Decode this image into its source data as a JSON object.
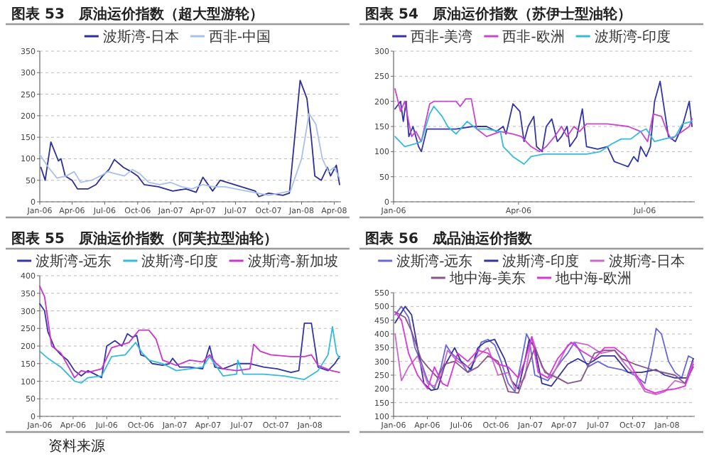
{
  "chart_data": [
    {
      "type": "line",
      "title": "图表 53　原油运价指数（超大型游轮）",
      "legend": "top",
      "grid": "y",
      "xlim": [
        "2006-01-01",
        "2008-04-20"
      ],
      "ylim": [
        0,
        350
      ],
      "yticks": [
        0,
        50,
        100,
        150,
        200,
        250,
        300,
        350
      ],
      "xticks": [
        {
          "value": "2006-01",
          "label": "Jan-06"
        },
        {
          "value": "2006-04",
          "label": "Apr-06"
        },
        {
          "value": "2006-07",
          "label": "Jul-06"
        },
        {
          "value": "2006-10",
          "label": "Oct-06"
        },
        {
          "value": "2007-01",
          "label": "Jan-07"
        },
        {
          "value": "2007-04",
          "label": "Apr-07"
        },
        {
          "value": "2007-07",
          "label": "Jul-07"
        },
        {
          "value": "2007-10",
          "label": "Oct-07"
        },
        {
          "value": "2008-01",
          "label": "Jan-08"
        },
        {
          "value": "2008-04",
          "label": "Apr-08"
        }
      ],
      "series": [
        {
          "name": "波斯湾-日本",
          "color": "#2e2e9a",
          "x": [
            "2006-01-04",
            "2006-01-16",
            "2006-02-01",
            "2006-02-22",
            "2006-03-01",
            "2006-03-13",
            "2006-04-01",
            "2006-04-16",
            "2006-05-16",
            "2006-06-07",
            "2006-06-25",
            "2006-07-13",
            "2006-07-28",
            "2006-08-22",
            "2006-09-13",
            "2006-10-01",
            "2006-10-19",
            "2006-11-28",
            "2007-01-07",
            "2007-02-13",
            "2007-03-13",
            "2007-04-01",
            "2007-04-28",
            "2007-05-19",
            "2007-06-28",
            "2007-08-25",
            "2007-09-04",
            "2007-10-01",
            "2007-11-10",
            "2007-11-28",
            "2007-12-13",
            "2007-12-28",
            "2008-01-16",
            "2008-01-28",
            "2008-02-07",
            "2008-02-25",
            "2008-03-13",
            "2008-03-22",
            "2008-04-07",
            "2008-04-16"
          ],
          "values": [
            80,
            50,
            139,
            95,
            100,
            60,
            50,
            30,
            30,
            40,
            60,
            75,
            98,
            80,
            70,
            60,
            40,
            35,
            25,
            30,
            22,
            57,
            25,
            50,
            40,
            25,
            12,
            20,
            15,
            20,
            150,
            282,
            240,
            150,
            60,
            50,
            80,
            60,
            85,
            40
          ]
        },
        {
          "name": "西非-中国",
          "color": "#a8c0ec",
          "x": [
            "2006-01-01",
            "2006-01-25",
            "2006-02-18",
            "2006-03-16",
            "2006-04-07",
            "2006-04-25",
            "2006-05-25",
            "2006-06-19",
            "2006-07-10",
            "2006-08-01",
            "2006-08-25",
            "2006-09-16",
            "2006-10-07",
            "2006-11-01",
            "2006-12-01",
            "2007-01-01",
            "2007-02-01",
            "2007-03-01",
            "2007-04-01",
            "2007-05-01",
            "2007-06-01",
            "2007-07-01",
            "2007-08-01",
            "2007-09-01",
            "2007-10-01",
            "2007-11-01",
            "2007-12-01",
            "2008-01-01",
            "2008-01-22",
            "2008-02-10",
            "2008-02-28",
            "2008-03-16",
            "2008-04-01",
            "2008-04-16"
          ],
          "values": [
            110,
            80,
            55,
            60,
            70,
            45,
            50,
            60,
            70,
            65,
            60,
            75,
            65,
            45,
            40,
            45,
            35,
            30,
            40,
            35,
            35,
            30,
            25,
            20,
            15,
            20,
            25,
            100,
            205,
            180,
            100,
            70,
            80,
            55
          ]
        }
      ]
    },
    {
      "type": "line",
      "title": "图表 54　原油运价指数（苏伊士型油轮）",
      "legend": "top",
      "grid": "y",
      "xlim": [
        "2006-01-01",
        "2006-08-06"
      ],
      "ylim": [
        0,
        300
      ],
      "yticks": [
        0,
        50,
        100,
        150,
        200,
        250,
        300
      ],
      "xticks": [
        {
          "value": "2006-01",
          "label": "Jan-06"
        },
        {
          "value": "2006-04",
          "label": "Apr-06"
        },
        {
          "value": "2006-07",
          "label": "Jul-06"
        }
      ],
      "series": [
        {
          "name": "西非-美湾",
          "color": "#3333aa",
          "x": [
            "2006-01-02",
            "2006-01-06",
            "2006-01-08",
            "2006-01-10",
            "2006-01-12",
            "2006-01-15",
            "2006-01-19",
            "2006-01-21",
            "2006-01-25",
            "2006-01-30",
            "2006-02-15",
            "2006-02-27",
            "2006-03-09",
            "2006-03-16",
            "2006-03-21",
            "2006-03-23",
            "2006-03-28",
            "2006-04-02",
            "2006-04-05",
            "2006-04-08",
            "2006-04-12",
            "2006-04-14",
            "2006-04-18",
            "2006-04-21",
            "2006-04-25",
            "2006-04-29",
            "2006-05-02",
            "2006-05-06",
            "2006-05-08",
            "2006-05-13",
            "2006-05-17",
            "2006-05-20",
            "2006-05-28",
            "2006-06-04",
            "2006-06-09",
            "2006-06-14",
            "2006-06-19",
            "2006-06-23",
            "2006-06-26",
            "2006-06-28",
            "2006-07-02",
            "2006-07-05",
            "2006-07-08",
            "2006-07-12",
            "2006-07-15",
            "2006-07-18",
            "2006-07-23",
            "2006-07-28",
            "2006-08-02",
            "2006-08-04"
          ],
          "values": [
            185,
            200,
            160,
            200,
            130,
            150,
            110,
            100,
            145,
            145,
            145,
            150,
            150,
            140,
            150,
            135,
            195,
            180,
            120,
            150,
            170,
            110,
            100,
            150,
            165,
            120,
            130,
            150,
            110,
            130,
            185,
            110,
            105,
            110,
            80,
            75,
            70,
            90,
            80,
            110,
            90,
            110,
            200,
            240,
            185,
            130,
            120,
            150,
            200,
            150
          ]
        },
        {
          "name": "西非-欧洲",
          "color": "#cc44cc",
          "x": [
            "2006-01-02",
            "2006-01-06",
            "2006-01-09",
            "2006-01-14",
            "2006-01-17",
            "2006-01-21",
            "2006-01-27",
            "2006-01-30",
            "2006-02-15",
            "2006-02-18",
            "2006-02-22",
            "2006-02-26",
            "2006-03-02",
            "2006-03-09",
            "2006-03-19",
            "2006-03-28",
            "2006-04-03",
            "2006-04-10",
            "2006-04-16",
            "2006-04-21",
            "2006-04-27",
            "2006-05-02",
            "2006-05-06",
            "2006-05-11",
            "2006-05-15",
            "2006-05-20",
            "2006-06-04",
            "2006-06-19",
            "2006-06-28",
            "2006-07-03",
            "2006-07-07",
            "2006-07-13",
            "2006-07-17",
            "2006-07-20",
            "2006-07-28",
            "2006-08-02",
            "2006-08-04"
          ],
          "values": [
            225,
            180,
            200,
            130,
            140,
            120,
            195,
            200,
            200,
            190,
            205,
            205,
            145,
            130,
            140,
            135,
            130,
            110,
            100,
            110,
            130,
            150,
            130,
            150,
            140,
            155,
            155,
            150,
            140,
            120,
            175,
            170,
            140,
            125,
            140,
            150,
            165
          ]
        },
        {
          "name": "波斯湾-印度",
          "color": "#33bbdd",
          "x": [
            "2006-01-02",
            "2006-01-09",
            "2006-01-16",
            "2006-01-21",
            "2006-01-27",
            "2006-01-30",
            "2006-02-05",
            "2006-02-09",
            "2006-02-15",
            "2006-02-23",
            "2006-03-02",
            "2006-03-09",
            "2006-03-19",
            "2006-03-21",
            "2006-03-28",
            "2006-04-05",
            "2006-04-10",
            "2006-04-19",
            "2006-05-06",
            "2006-05-20",
            "2006-05-30",
            "2006-06-07",
            "2006-06-14",
            "2006-06-21",
            "2006-06-28",
            "2006-07-02",
            "2006-07-08",
            "2006-07-15",
            "2006-07-23",
            "2006-07-28",
            "2006-08-04"
          ],
          "values": [
            130,
            110,
            115,
            120,
            175,
            190,
            170,
            150,
            135,
            160,
            145,
            145,
            140,
            110,
            90,
            75,
            90,
            95,
            95,
            95,
            100,
            115,
            125,
            125,
            140,
            145,
            120,
            125,
            130,
            155,
            160
          ]
        }
      ]
    },
    {
      "type": "line",
      "title": "图表 55　原油运价指数（阿芙拉型油轮）",
      "legend": "top",
      "grid": "y",
      "xlim": [
        "2006-01-01",
        "2008-03-25"
      ],
      "ylim": [
        0,
        400
      ],
      "yticks": [
        0,
        50,
        100,
        150,
        200,
        250,
        300,
        350,
        400
      ],
      "xticks": [
        {
          "value": "2006-01",
          "label": "Jan-06"
        },
        {
          "value": "2006-04",
          "label": "Apr-06"
        },
        {
          "value": "2006-07",
          "label": "Jul-06"
        },
        {
          "value": "2006-10",
          "label": "Oct-06"
        },
        {
          "value": "2007-01",
          "label": "Jan-07"
        },
        {
          "value": "2007-04",
          "label": "Apr-07"
        },
        {
          "value": "2007-07",
          "label": "Jul-07"
        },
        {
          "value": "2007-10",
          "label": "Oct-07"
        },
        {
          "value": "2008-01",
          "label": "Jan-08"
        }
      ],
      "annotations": [
        "资料来源"
      ],
      "series": [
        {
          "name": "波斯湾-远东",
          "color": "#3333aa",
          "x": [
            "2006-01-01",
            "2006-01-14",
            "2006-01-23",
            "2006-02-10",
            "2006-02-27",
            "2006-03-17",
            "2006-04-05",
            "2006-04-23",
            "2006-05-11",
            "2006-05-30",
            "2006-06-17",
            "2006-07-01",
            "2006-07-23",
            "2006-08-11",
            "2006-08-26",
            "2006-09-08",
            "2006-09-20",
            "2006-10-01",
            "2006-10-14",
            "2006-11-01",
            "2006-11-29",
            "2006-12-17",
            "2006-12-26",
            "2007-01-14",
            "2007-02-10",
            "2007-03-17",
            "2007-04-05",
            "2007-04-19",
            "2007-05-11",
            "2007-06-17",
            "2007-07-23",
            "2007-08-29",
            "2007-10-05",
            "2007-11-11",
            "2007-12-02",
            "2007-12-17",
            "2008-01-05",
            "2008-01-23",
            "2008-02-19",
            "2008-03-08",
            "2008-03-21"
          ],
          "values": [
            320,
            300,
            240,
            195,
            175,
            160,
            130,
            115,
            130,
            120,
            110,
            200,
            215,
            200,
            235,
            225,
            230,
            175,
            170,
            150,
            145,
            150,
            165,
            140,
            140,
            135,
            200,
            140,
            135,
            150,
            150,
            140,
            135,
            125,
            130,
            265,
            265,
            140,
            130,
            150,
            170
          ]
        },
        {
          "name": "波斯湾-印度",
          "color": "#33bbdd",
          "x": [
            "2006-01-01",
            "2006-01-23",
            "2006-02-27",
            "2006-04-05",
            "2006-04-23",
            "2006-05-11",
            "2006-06-17",
            "2006-07-14",
            "2006-08-20",
            "2006-09-17",
            "2006-10-05",
            "2006-10-23",
            "2006-11-29",
            "2007-01-05",
            "2007-02-10",
            "2007-03-17",
            "2007-04-05",
            "2007-05-11",
            "2007-06-17",
            "2007-06-20",
            "2007-07-05",
            "2007-08-29",
            "2007-10-23",
            "2007-12-17",
            "2008-01-23",
            "2008-02-19",
            "2008-03-02",
            "2008-03-13",
            "2008-03-21"
          ],
          "values": [
            185,
            165,
            140,
            100,
            95,
            110,
            115,
            170,
            175,
            210,
            180,
            160,
            150,
            130,
            135,
            140,
            170,
            115,
            120,
            160,
            120,
            120,
            115,
            105,
            130,
            175,
            255,
            180,
            165
          ]
        },
        {
          "name": "波斯湾-新加坡",
          "color": "#cc33cc",
          "x": [
            "2006-01-01",
            "2006-01-14",
            "2006-02-02",
            "2006-02-27",
            "2006-04-05",
            "2006-04-23",
            "2006-05-11",
            "2006-06-17",
            "2006-07-14",
            "2006-08-30",
            "2006-09-26",
            "2006-10-23",
            "2006-11-11",
            "2006-11-29",
            "2007-01-05",
            "2007-02-10",
            "2007-03-17",
            "2007-04-05",
            "2007-04-23",
            "2007-05-11",
            "2007-06-17",
            "2007-07-23",
            "2007-08-02",
            "2007-08-20",
            "2007-09-17",
            "2007-11-11",
            "2007-12-17",
            "2008-01-05",
            "2008-01-23",
            "2008-02-28",
            "2008-03-21"
          ],
          "values": [
            370,
            340,
            200,
            180,
            110,
            130,
            125,
            135,
            195,
            210,
            245,
            245,
            220,
            160,
            145,
            160,
            155,
            175,
            150,
            135,
            130,
            135,
            205,
            185,
            175,
            170,
            170,
            175,
            145,
            130,
            125
          ]
        }
      ]
    },
    {
      "type": "line",
      "title": "图表 56　成品油运价指数",
      "legend": "top",
      "grid": "y",
      "xlim": [
        "2006-01-01",
        "2008-03-15"
      ],
      "ylim": [
        100,
        550
      ],
      "yticks": [
        100,
        150,
        200,
        250,
        300,
        350,
        400,
        450,
        500,
        550
      ],
      "xticks": [
        {
          "value": "2006-01",
          "label": "Jan-06"
        },
        {
          "value": "2006-04",
          "label": "Apr-06"
        },
        {
          "value": "2006-07",
          "label": "Jul-06"
        },
        {
          "value": "2006-10",
          "label": "Oct-06"
        },
        {
          "value": "2007-01",
          "label": "Jan-07"
        },
        {
          "value": "2007-04",
          "label": "Apr-07"
        },
        {
          "value": "2007-07",
          "label": "Jul-07"
        },
        {
          "value": "2007-10",
          "label": "Oct-07"
        },
        {
          "value": "2008-01",
          "label": "Jan-08"
        }
      ],
      "series": [
        {
          "name": "波斯湾-远东",
          "color": "#6666dd",
          "x": [
            "2006-01-05",
            "2006-01-22",
            "2006-02-10",
            "2006-02-27",
            "2006-03-15",
            "2006-04-02",
            "2006-04-20",
            "2006-05-08",
            "2006-05-21",
            "2006-06-04",
            "2006-06-30",
            "2006-07-18",
            "2006-08-05",
            "2006-08-23",
            "2006-09-10",
            "2006-09-28",
            "2006-10-15",
            "2006-11-03",
            "2006-11-21",
            "2006-12-08",
            "2006-12-22",
            "2006-12-29",
            "2007-01-13",
            "2007-02-17",
            "2007-03-24",
            "2007-04-11",
            "2007-04-29",
            "2007-05-16",
            "2007-06-04",
            "2007-06-30",
            "2007-07-27",
            "2007-09-02",
            "2007-10-07",
            "2007-11-03",
            "2007-11-21",
            "2007-12-03",
            "2007-12-17",
            "2008-01-05",
            "2008-01-22",
            "2008-02-09",
            "2008-02-27",
            "2008-03-11"
          ],
          "values": [
            470,
            500,
            460,
            350,
            300,
            230,
            200,
            280,
            360,
            330,
            300,
            260,
            300,
            370,
            380,
            360,
            300,
            220,
            190,
            300,
            400,
            380,
            250,
            230,
            300,
            330,
            370,
            330,
            280,
            300,
            280,
            270,
            250,
            220,
            330,
            420,
            400,
            300,
            260,
            240,
            320,
            310
          ]
        },
        {
          "name": "波斯湾-印度",
          "color": "#333399",
          "x": [
            "2006-01-05",
            "2006-02-01",
            "2006-02-18",
            "2006-03-06",
            "2006-03-23",
            "2006-04-11",
            "2006-04-29",
            "2006-05-16",
            "2006-06-13",
            "2006-06-30",
            "2006-07-27",
            "2006-08-14",
            "2006-09-02",
            "2006-09-28",
            "2006-10-24",
            "2006-11-12",
            "2006-11-30",
            "2006-12-17",
            "2006-12-29",
            "2007-01-13",
            "2007-02-01",
            "2007-02-26",
            "2007-04-11",
            "2007-05-08",
            "2007-06-04",
            "2007-07-09",
            "2007-08-14",
            "2007-09-19",
            "2007-10-24",
            "2007-12-03",
            "2007-12-26",
            "2008-01-22",
            "2008-02-23",
            "2008-03-11"
          ],
          "values": [
            440,
            500,
            470,
            350,
            220,
            195,
            200,
            280,
            350,
            300,
            270,
            350,
            370,
            380,
            310,
            230,
            200,
            300,
            380,
            350,
            220,
            210,
            290,
            310,
            290,
            320,
            320,
            260,
            260,
            270,
            250,
            240,
            240,
            310
          ]
        },
        {
          "name": "波斯湾-日本",
          "color": "#cc66cc",
          "x": [
            "2006-01-05",
            "2006-01-22",
            "2006-02-10",
            "2006-03-06",
            "2006-04-02",
            "2006-04-20",
            "2006-05-08",
            "2006-05-25",
            "2006-06-21",
            "2006-07-18",
            "2006-08-14",
            "2006-09-10",
            "2006-10-07",
            "2006-11-03",
            "2006-11-21",
            "2006-12-17",
            "2007-01-05",
            "2007-02-01",
            "2007-02-26",
            "2007-04-11",
            "2007-04-29",
            "2007-06-04",
            "2007-07-09",
            "2007-08-14",
            "2007-09-11",
            "2007-10-07",
            "2007-11-03",
            "2007-12-03",
            "2007-12-26",
            "2008-01-22",
            "2008-02-18",
            "2008-03-11"
          ],
          "values": [
            400,
            230,
            280,
            320,
            220,
            210,
            250,
            340,
            300,
            280,
            320,
            350,
            250,
            260,
            200,
            240,
            390,
            280,
            240,
            360,
            370,
            360,
            330,
            340,
            290,
            250,
            190,
            180,
            190,
            230,
            220,
            300
          ]
        },
        {
          "name": "地中海-美东",
          "color": "#885588",
          "x": [
            "2006-01-05",
            "2006-02-01",
            "2006-02-18",
            "2006-03-15",
            "2006-04-02",
            "2006-04-29",
            "2006-05-16",
            "2006-06-13",
            "2006-07-18",
            "2006-08-14",
            "2006-09-10",
            "2006-10-07",
            "2006-11-03",
            "2006-11-30",
            "2006-12-17",
            "2007-01-13",
            "2007-02-09",
            "2007-03-15",
            "2007-04-11",
            "2007-05-16",
            "2007-06-21",
            "2007-07-18",
            "2007-08-14",
            "2007-09-02",
            "2007-10-07",
            "2007-11-21",
            "2008-01-22",
            "2008-02-18",
            "2008-03-11"
          ],
          "values": [
            480,
            460,
            410,
            310,
            280,
            240,
            290,
            300,
            260,
            280,
            320,
            300,
            190,
            185,
            250,
            350,
            260,
            240,
            220,
            230,
            330,
            340,
            340,
            310,
            290,
            270,
            250,
            220,
            280
          ]
        },
        {
          "name": "地中海-欧洲",
          "color": "#dd33dd",
          "x": [
            "2006-01-05",
            "2006-01-22",
            "2006-02-10",
            "2006-03-06",
            "2006-04-02",
            "2006-04-20",
            "2006-05-11",
            "2006-05-25",
            "2006-06-21",
            "2006-07-18",
            "2006-08-14",
            "2006-09-10",
            "2006-10-07",
            "2006-11-03",
            "2006-11-30",
            "2006-12-17",
            "2007-01-05",
            "2007-01-22",
            "2007-02-17",
            "2007-03-15",
            "2007-04-20",
            "2007-05-16",
            "2007-06-21",
            "2007-07-18",
            "2007-08-14",
            "2007-09-11",
            "2007-10-07",
            "2007-11-03",
            "2007-11-30",
            "2007-12-26",
            "2008-01-22",
            "2008-02-18",
            "2008-03-11"
          ],
          "values": [
            480,
            450,
            330,
            250,
            200,
            280,
            220,
            210,
            330,
            300,
            340,
            330,
            290,
            280,
            240,
            300,
            390,
            260,
            240,
            310,
            370,
            340,
            310,
            350,
            350,
            320,
            260,
            200,
            185,
            195,
            200,
            210,
            290
          ]
        }
      ]
    }
  ]
}
